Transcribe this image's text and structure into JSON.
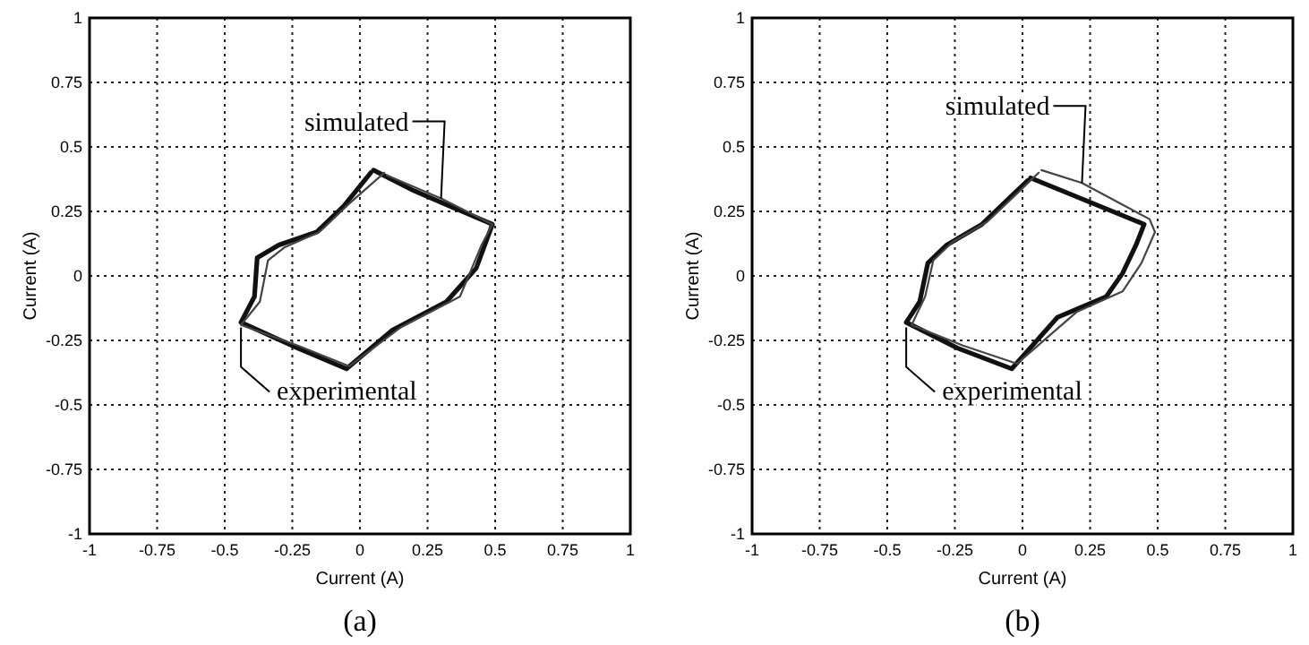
{
  "chart_data": [
    {
      "type": "line",
      "title": "(a)",
      "xlabel": "Current (A)",
      "ylabel": "Current (A)",
      "xlim": [
        -1,
        1
      ],
      "ylim": [
        -1,
        1
      ],
      "xticks": [
        -1,
        -0.75,
        -0.5,
        -0.25,
        0,
        0.25,
        0.5,
        0.75,
        1
      ],
      "yticks": [
        -1,
        -0.75,
        -0.5,
        -0.25,
        0,
        0.25,
        0.5,
        0.75,
        1
      ],
      "grid": true,
      "marker": "none",
      "series": [
        {
          "color": "#111111",
          "line_style": "solid",
          "x": [
            0.05,
            0.2,
            0.49,
            0.43,
            0.32,
            0.12,
            -0.05,
            -0.23,
            -0.44,
            -0.39,
            -0.38,
            -0.3,
            -0.16,
            -0.06,
            0.04
          ],
          "values": [
            0.41,
            0.33,
            0.2,
            0.03,
            -0.1,
            -0.21,
            -0.36,
            -0.28,
            -0.18,
            -0.08,
            0.07,
            0.12,
            0.17,
            0.27,
            0.4
          ]
        },
        {
          "color": "#444444",
          "line_style": "solid",
          "x": [
            0.1,
            0.3,
            0.49,
            0.45,
            0.37,
            0.15,
            -0.04,
            -0.23,
            -0.44,
            -0.37,
            -0.34,
            -0.28,
            -0.15,
            -0.04,
            0.09
          ],
          "values": [
            0.39,
            0.3,
            0.2,
            0.12,
            -0.08,
            -0.2,
            -0.35,
            -0.27,
            -0.19,
            -0.1,
            0.06,
            0.11,
            0.17,
            0.28,
            0.4
          ]
        }
      ],
      "annotations": [
        {
          "text": "simulated",
          "x": 0.3,
          "y": 0.3
        },
        {
          "text": "experimental",
          "x": -0.44,
          "y": -0.2
        }
      ]
    },
    {
      "type": "line",
      "title": "(b)",
      "xlabel": "Current (A)",
      "ylabel": "Current (A)",
      "xlim": [
        -1,
        1
      ],
      "ylim": [
        -1,
        1
      ],
      "xticks": [
        -1,
        -0.75,
        -0.5,
        -0.25,
        0,
        0.25,
        0.5,
        0.75,
        1
      ],
      "yticks": [
        -1,
        -0.75,
        -0.5,
        -0.25,
        0,
        0.25,
        0.5,
        0.75,
        1
      ],
      "grid": true,
      "marker": "none",
      "series": [
        {
          "color": "#111111",
          "line_style": "solid",
          "x": [
            0.03,
            0.45,
            0.42,
            0.37,
            0.31,
            0.13,
            -0.04,
            -0.24,
            -0.43,
            -0.38,
            -0.35,
            -0.28,
            -0.15,
            -0.04,
            0.02
          ],
          "values": [
            0.38,
            0.2,
            0.12,
            0.01,
            -0.08,
            -0.16,
            -0.36,
            -0.28,
            -0.18,
            -0.1,
            0.05,
            0.12,
            0.2,
            0.31,
            0.37
          ]
        },
        {
          "color": "#444444",
          "line_style": "solid",
          "x": [
            0.07,
            0.22,
            0.47,
            0.49,
            0.44,
            0.37,
            0.2,
            -0.02,
            -0.22,
            -0.41,
            -0.36,
            -0.33,
            -0.26,
            -0.13,
            -0.02,
            0.06
          ],
          "values": [
            0.41,
            0.36,
            0.22,
            0.17,
            0.05,
            -0.06,
            -0.14,
            -0.34,
            -0.27,
            -0.19,
            -0.08,
            0.06,
            0.13,
            0.21,
            0.32,
            0.4
          ]
        }
      ],
      "annotations": [
        {
          "text": "simulated",
          "x": 0.22,
          "y": 0.36
        },
        {
          "text": "experimental",
          "x": -0.43,
          "y": -0.2
        }
      ]
    }
  ]
}
